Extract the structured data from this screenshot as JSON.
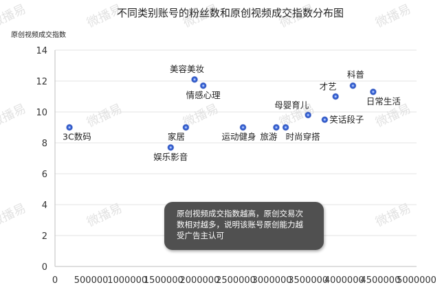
{
  "chart_data": {
    "type": "scatter",
    "title": "不同类别账号的粉丝数和原创视频成交指数分布图",
    "ylabel": "原创视频成交指数",
    "xlabel": "",
    "xlim": [
      0,
      5000000
    ],
    "ylim": [
      0,
      14
    ],
    "xticks": [
      "0",
      "500000",
      "1000000",
      "1500000",
      "2000000",
      "2500000",
      "3000000",
      "3500000",
      "4000000",
      "4500000",
      "5000000"
    ],
    "yticks": [
      "0",
      "2",
      "4",
      "6",
      "8",
      "10",
      "12",
      "14"
    ],
    "grid": true,
    "points": [
      {
        "label": "3C数码",
        "x": 200000,
        "y": 9.0
      },
      {
        "label": "娱乐影音",
        "x": 1600000,
        "y": 7.7
      },
      {
        "label": "家居",
        "x": 1810000,
        "y": 9.0
      },
      {
        "label": "美容美妆",
        "x": 1930000,
        "y": 12.1
      },
      {
        "label": "情感心理",
        "x": 2050000,
        "y": 11.7
      },
      {
        "label": "运动健身",
        "x": 2600000,
        "y": 9.0
      },
      {
        "label": "旅游",
        "x": 3060000,
        "y": 9.0
      },
      {
        "label": "时尚穿搭",
        "x": 3190000,
        "y": 9.0
      },
      {
        "label": "母婴育儿",
        "x": 3500000,
        "y": 9.8
      },
      {
        "label": "笑话段子",
        "x": 3730000,
        "y": 9.5
      },
      {
        "label": "才艺",
        "x": 3880000,
        "y": 11.0
      },
      {
        "label": "科普",
        "x": 4120000,
        "y": 11.7
      },
      {
        "label": "日常生活",
        "x": 4400000,
        "y": 11.3
      }
    ],
    "marker_color": "#2a55c8"
  },
  "annotation": {
    "lines": [
      "原创视频成交指数越高，原创交易次",
      "数相对越多，说明该账号原创能力越",
      "受广告主认可"
    ]
  },
  "watermark": "微播易"
}
